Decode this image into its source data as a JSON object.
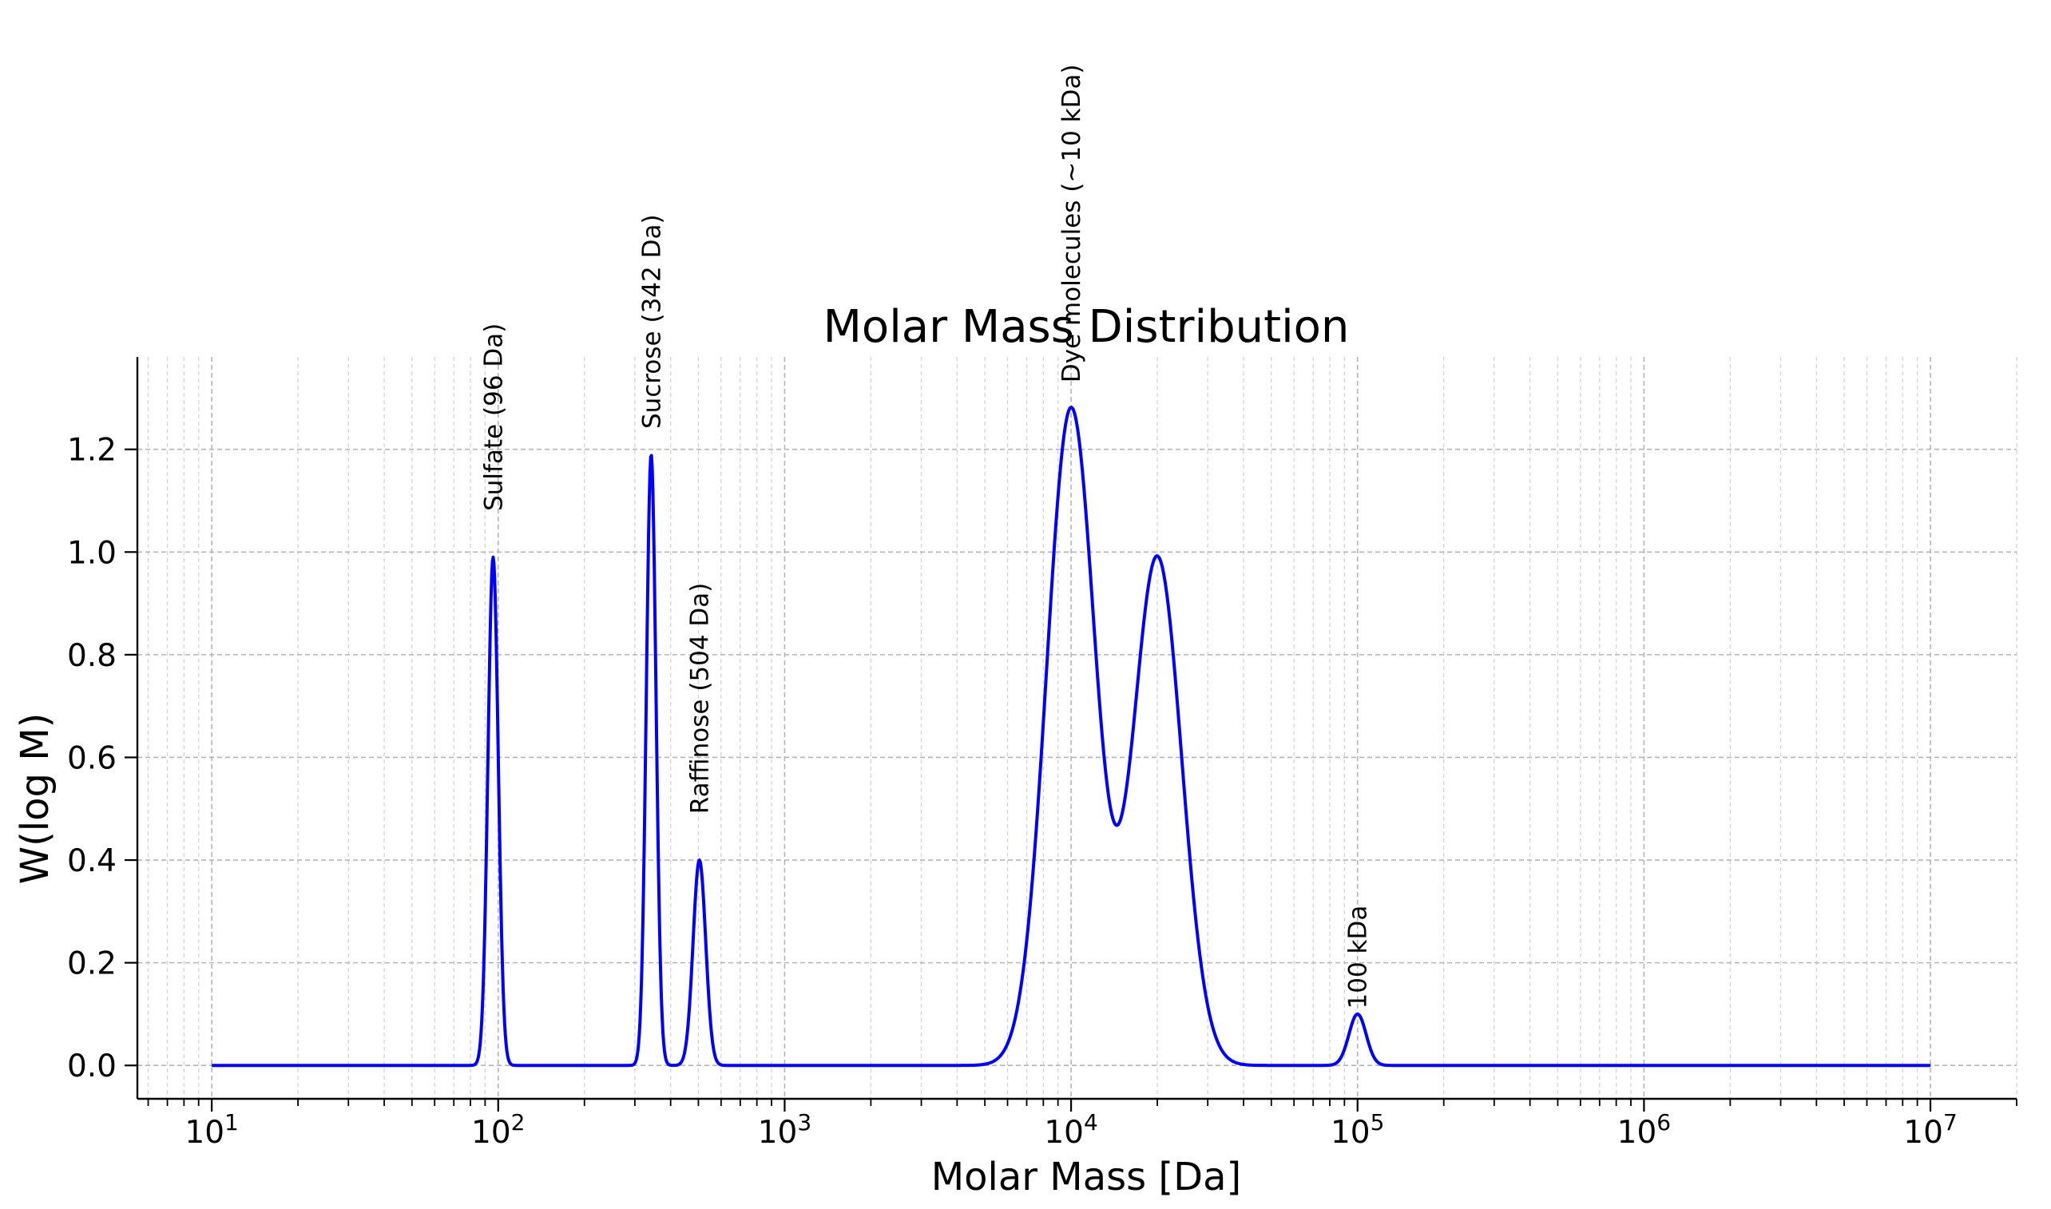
{
  "chart_data": {
    "type": "line",
    "title": "Molar Mass Distribution",
    "xlabel": "Molar Mass [Da]",
    "ylabel": "W(log M)",
    "x_scale": "log",
    "xlim": [
      5.5,
      20000000
    ],
    "ylim": [
      -0.065,
      1.38
    ],
    "grid": true,
    "x_ticks": [
      {
        "base": "10",
        "exp": "1",
        "value": 10
      },
      {
        "base": "10",
        "exp": "2",
        "value": 100
      },
      {
        "base": "10",
        "exp": "3",
        "value": 1000
      },
      {
        "base": "10",
        "exp": "4",
        "value": 10000
      },
      {
        "base": "10",
        "exp": "5",
        "value": 100000
      },
      {
        "base": "10",
        "exp": "6",
        "value": 1000000
      },
      {
        "base": "10",
        "exp": "7",
        "value": 10000000
      }
    ],
    "y_ticks": [
      {
        "label": "0.0",
        "value": 0.0
      },
      {
        "label": "0.2",
        "value": 0.2
      },
      {
        "label": "0.4",
        "value": 0.4
      },
      {
        "label": "0.6",
        "value": 0.6
      },
      {
        "label": "0.8",
        "value": 0.8
      },
      {
        "label": "1.0",
        "value": 1.0
      },
      {
        "label": "1.2",
        "value": 1.2
      }
    ],
    "series": [
      {
        "color": "#0000ff",
        "x_range": [
          10,
          10000000
        ],
        "peaks": [
          {
            "center": 96,
            "height": 0.99,
            "log_sigma": 0.018
          },
          {
            "center": 342,
            "height": 1.19,
            "log_sigma": 0.017
          },
          {
            "center": 504,
            "height": 0.4,
            "log_sigma": 0.022
          },
          {
            "center": 10000,
            "height": 1.28,
            "log_sigma": 0.085
          },
          {
            "center": 20000,
            "height": 0.99,
            "log_sigma": 0.085
          },
          {
            "center": 100000,
            "height": 0.1,
            "log_sigma": 0.03
          }
        ]
      }
    ],
    "annotations": [
      {
        "text": "Sulfate (96 Da)",
        "x": 96,
        "y": 1.08
      },
      {
        "text": "Sucrose (342 Da)",
        "x": 342,
        "y": 1.24
      },
      {
        "text": "Raffinose (504 Da)",
        "x": 504,
        "y": 0.49
      },
      {
        "text": "Dye molecules (~10 kDa)",
        "x": 10000,
        "y": 1.33
      },
      {
        "text": "100 kDa",
        "x": 100000,
        "y": 0.11
      }
    ]
  }
}
